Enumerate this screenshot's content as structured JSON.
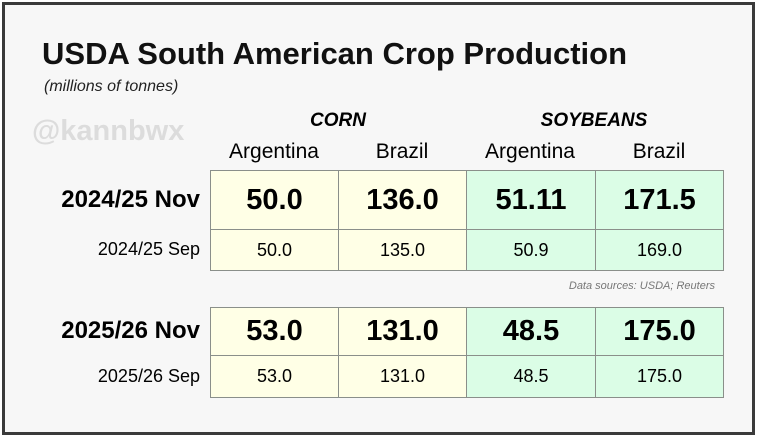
{
  "title": "USDA South American Crop Production",
  "subtitle": "(millions of tonnes)",
  "watermark": "@kannbwx",
  "source": "Data sources: USDA; Reuters",
  "colors": {
    "corn": "#ffffe6",
    "soybeans": "#dbfde6"
  },
  "chart_data": {
    "type": "table",
    "groups": [
      "CORN",
      "SOYBEANS"
    ],
    "columns": [
      "Argentina",
      "Brazil",
      "Argentina",
      "Brazil"
    ],
    "rows": [
      {
        "label": "2024/25 Nov",
        "values": [
          "50.0",
          "136.0",
          "51.11",
          "171.5"
        ]
      },
      {
        "label": "2024/25 Sep",
        "values": [
          "50.0",
          "135.0",
          "50.9",
          "169.0"
        ]
      },
      {
        "label": "2025/26 Nov",
        "values": [
          "53.0",
          "131.0",
          "48.5",
          "175.0"
        ]
      },
      {
        "label": "2025/26 Sep",
        "values": [
          "53.0",
          "131.0",
          "48.5",
          "175.0"
        ]
      }
    ]
  }
}
